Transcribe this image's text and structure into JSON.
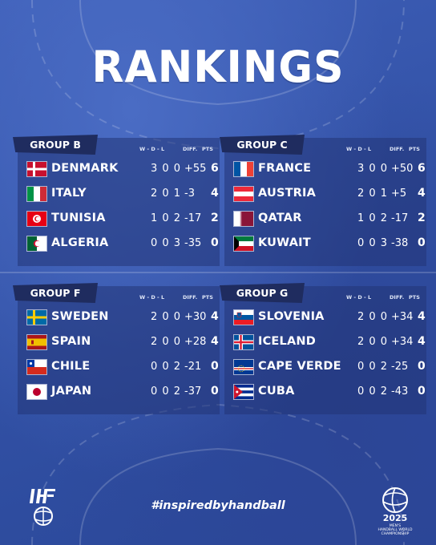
{
  "title": "RANKINGS",
  "header_cols": {
    "record": "W - D - L",
    "diff": "DIFF.",
    "pts": "PTS"
  },
  "groups": [
    {
      "name": "GROUP B",
      "rows": [
        {
          "country": "DENMARK",
          "record": "3 0 0",
          "diff": "+55",
          "pts": "6",
          "flag": "denmark"
        },
        {
          "country": "ITALY",
          "record": "2 0 1",
          "diff": "-3",
          "pts": "4",
          "flag": "italy"
        },
        {
          "country": "TUNISIA",
          "record": "1 0 2",
          "diff": "-17",
          "pts": "2",
          "flag": "tunisia"
        },
        {
          "country": "ALGERIA",
          "record": "0 0 3",
          "diff": "-35",
          "pts": "0",
          "flag": "algeria"
        }
      ]
    },
    {
      "name": "GROUP C",
      "rows": [
        {
          "country": "FRANCE",
          "record": "3 0 0",
          "diff": "+50",
          "pts": "6",
          "flag": "france"
        },
        {
          "country": "AUSTRIA",
          "record": "2 0 1",
          "diff": "+5",
          "pts": "4",
          "flag": "austria"
        },
        {
          "country": "QATAR",
          "record": "1 0 2",
          "diff": "-17",
          "pts": "2",
          "flag": "qatar"
        },
        {
          "country": "KUWAIT",
          "record": "0 0 3",
          "diff": "-38",
          "pts": "0",
          "flag": "kuwait"
        }
      ]
    },
    {
      "name": "GROUP F",
      "rows": [
        {
          "country": "SWEDEN",
          "record": "2 0 0",
          "diff": "+30",
          "pts": "4",
          "flag": "sweden"
        },
        {
          "country": "SPAIN",
          "record": "2 0 0",
          "diff": "+28",
          "pts": "4",
          "flag": "spain"
        },
        {
          "country": "CHILE",
          "record": "0 0 2",
          "diff": "-21",
          "pts": "0",
          "flag": "chile"
        },
        {
          "country": "JAPAN",
          "record": "0 0 2",
          "diff": "-37",
          "pts": "0",
          "flag": "japan"
        }
      ]
    },
    {
      "name": "GROUP G",
      "rows": [
        {
          "country": "SLOVENIA",
          "record": "2 0 0",
          "diff": "+34",
          "pts": "4",
          "flag": "slovenia"
        },
        {
          "country": "ICELAND",
          "record": "2 0 0",
          "diff": "+34",
          "pts": "4",
          "flag": "iceland"
        },
        {
          "country": "CAPE VERDE",
          "record": "0 0 2",
          "diff": "-25",
          "pts": "0",
          "flag": "cape-verde"
        },
        {
          "country": "CUBA",
          "record": "0 0 2",
          "diff": "-43",
          "pts": "0",
          "flag": "cuba"
        }
      ]
    }
  ],
  "hashtag": "#inspiredbyhandball",
  "logos": {
    "ihf": "IHF",
    "championship_year": "2025",
    "championship_lines": [
      "MEN'S",
      "HANDBALL WORLD",
      "CHAMPIONSHIP"
    ]
  },
  "colors": {
    "background": "#3553a8",
    "panel": "#223476",
    "header_tab": "#1f2c5f",
    "text": "#ffffff"
  }
}
